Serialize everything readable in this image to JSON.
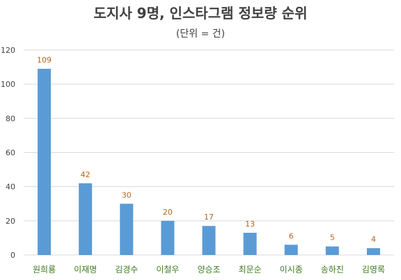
{
  "colors": {
    "bar": "#5b9bd5",
    "grid": "#d9d9d9",
    "axis_text": "#404040",
    "category_text": "#3a7a1c",
    "data_label": "#b5651d"
  },
  "chart_data": {
    "type": "bar",
    "title": "도지사 9명, 인스타그램 정보량 순위",
    "subtitle": "(단위 = 건)",
    "categories": [
      "원희룡",
      "이재명",
      "김경수",
      "이철우",
      "양승조",
      "최문순",
      "이시종",
      "송하진",
      "김영록"
    ],
    "values": [
      109,
      42,
      30,
      20,
      17,
      13,
      6,
      5,
      4
    ],
    "ylim": [
      0,
      120
    ],
    "yticks": [
      0,
      20,
      40,
      60,
      80,
      100,
      120
    ],
    "grid": true,
    "legend": "none"
  }
}
